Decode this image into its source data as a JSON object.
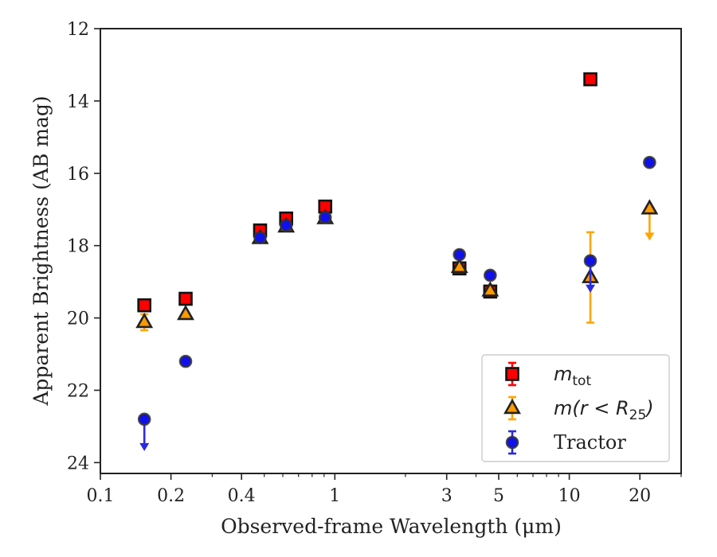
{
  "chart_data": {
    "type": "scatter",
    "xlabel": "Observed-frame Wavelength (μm)",
    "ylabel": "Apparent Brightness (AB mag)",
    "x_scale": "log",
    "xlim": [
      0.1,
      30
    ],
    "ylim": [
      24.3,
      12
    ],
    "y_inverted": true,
    "x_ticks": [
      {
        "value": 0.1,
        "label": "0.1"
      },
      {
        "value": 0.2,
        "label": "0.2"
      },
      {
        "value": 0.4,
        "label": "0.4"
      },
      {
        "value": 1,
        "label": "1"
      },
      {
        "value": 3,
        "label": "3"
      },
      {
        "value": 5,
        "label": "5"
      },
      {
        "value": 10,
        "label": "10"
      },
      {
        "value": 20,
        "label": "20"
      }
    ],
    "x_minor_ticks": [
      0.3,
      0.5,
      0.6,
      0.7,
      0.8,
      0.9,
      2,
      4,
      6,
      7,
      8,
      9,
      30
    ],
    "y_ticks": [
      {
        "value": 12,
        "label": "12"
      },
      {
        "value": 14,
        "label": "14"
      },
      {
        "value": 16,
        "label": "16"
      },
      {
        "value": 18,
        "label": "18"
      },
      {
        "value": 20,
        "label": "20"
      },
      {
        "value": 22,
        "label": "22"
      },
      {
        "value": 24,
        "label": "24"
      }
    ],
    "grid": false,
    "legend_position": "bottom-right",
    "series": [
      {
        "key": "mtot",
        "legend_main": "m",
        "legend_sub": "tot",
        "legend_rest": "",
        "marker": "square",
        "color": "#ff0000",
        "edge_color": "#111111",
        "points": [
          {
            "x": 0.154,
            "y": 19.65
          },
          {
            "x": 0.231,
            "y": 19.47
          },
          {
            "x": 0.48,
            "y": 17.58
          },
          {
            "x": 0.62,
            "y": 17.25
          },
          {
            "x": 0.91,
            "y": 16.92
          },
          {
            "x": 3.4,
            "y": 18.63
          },
          {
            "x": 4.6,
            "y": 19.27
          },
          {
            "x": 12.3,
            "y": 13.4
          }
        ]
      },
      {
        "key": "mr25",
        "legend_main": "m(r < R",
        "legend_sub": "25",
        "legend_rest": ")",
        "marker": "triangle",
        "color": "#ff9900",
        "edge_color": "#222222",
        "error_color": "#ffa500",
        "points": [
          {
            "x": 0.154,
            "y": 20.12,
            "yerr": 0.22
          },
          {
            "x": 0.231,
            "y": 19.9
          },
          {
            "x": 0.48,
            "y": 17.8
          },
          {
            "x": 0.62,
            "y": 17.48
          },
          {
            "x": 0.91,
            "y": 17.25
          },
          {
            "x": 3.4,
            "y": 18.6
          },
          {
            "x": 4.6,
            "y": 19.25
          },
          {
            "x": 12.3,
            "y": 18.88,
            "yerr": 1.25
          },
          {
            "x": 22.0,
            "y": 16.98,
            "upper_limit": true
          }
        ]
      },
      {
        "key": "tractor",
        "legend_main": "Tractor",
        "legend_sub": "",
        "legend_rest": "",
        "marker": "circle",
        "color": "#1010ee",
        "edge_color": "#333333",
        "error_color": "#2a2ae0",
        "points": [
          {
            "x": 0.154,
            "y": 22.8,
            "upper_limit": true
          },
          {
            "x": 0.231,
            "y": 21.2
          },
          {
            "x": 0.48,
            "y": 17.78
          },
          {
            "x": 0.62,
            "y": 17.44
          },
          {
            "x": 0.91,
            "y": 17.22
          },
          {
            "x": 3.4,
            "y": 18.25
          },
          {
            "x": 4.6,
            "y": 18.82
          },
          {
            "x": 12.3,
            "y": 18.42,
            "upper_limit": true
          },
          {
            "x": 22.0,
            "y": 15.7
          }
        ]
      }
    ]
  }
}
